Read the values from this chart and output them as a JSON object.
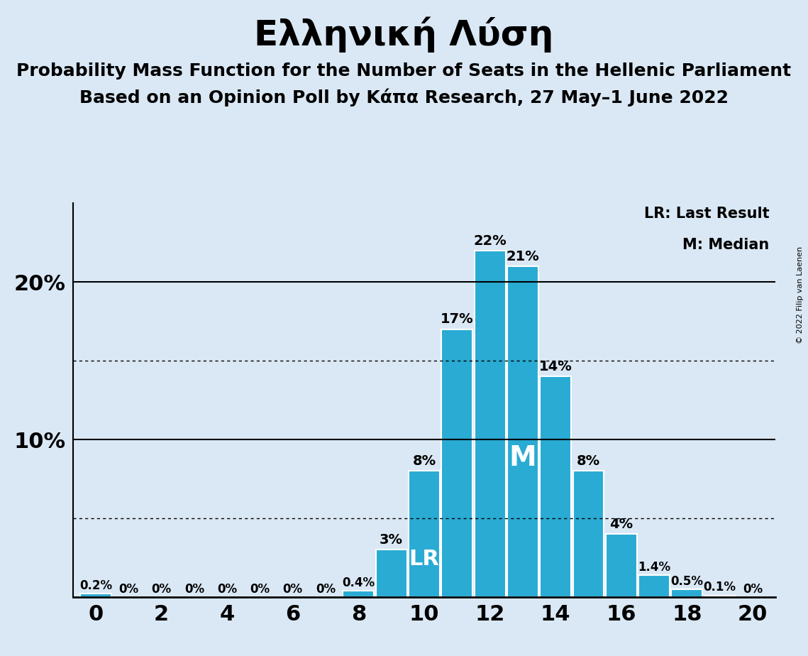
{
  "title": "Ελληνική Λύση",
  "subtitle1": "Probability Mass Function for the Number of Seats in the Hellenic Parliament",
  "subtitle2": "Based on an Opinion Poll by Κάπα Research, 27 May–1 June 2022",
  "copyright": "© 2022 Filip van Laenen",
  "seats": [
    0,
    1,
    2,
    3,
    4,
    5,
    6,
    7,
    8,
    9,
    10,
    11,
    12,
    13,
    14,
    15,
    16,
    17,
    18,
    19,
    20
  ],
  "probabilities": [
    0.2,
    0,
    0,
    0,
    0,
    0,
    0,
    0,
    0.4,
    3,
    8,
    17,
    22,
    21,
    14,
    8,
    4,
    1.4,
    0.5,
    0.1,
    0
  ],
  "bar_color": "#29ABD4",
  "background_color": "#DAE8F5",
  "lr_seat": 10,
  "median_seat": 13,
  "legend_lr": "LR: Last Result",
  "legend_m": "M: Median",
  "ylim": [
    0,
    25
  ],
  "solid_gridlines": [
    10,
    20
  ],
  "dotted_gridlines": [
    5,
    15
  ],
  "title_fontsize": 36,
  "subtitle_fontsize": 18,
  "bar_label_fontsize": 14,
  "axis_fontsize": 22
}
